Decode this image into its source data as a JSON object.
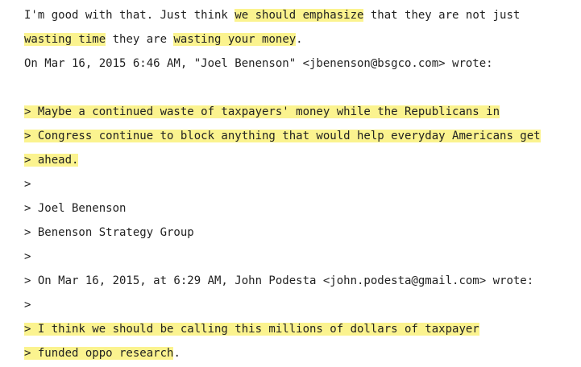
{
  "email": {
    "highlight_color": "#fbf38f",
    "text_color": "#222222",
    "lines": [
      {
        "type": "text",
        "segments": [
          {
            "text": "I'm good with that. Just think ",
            "highlight": false
          },
          {
            "text": "we should emphasize",
            "highlight": true
          },
          {
            "text": " that they are not just",
            "highlight": false
          }
        ]
      },
      {
        "type": "text",
        "segments": [
          {
            "text": "wasting time",
            "highlight": true
          },
          {
            "text": " they are ",
            "highlight": false
          },
          {
            "text": "wasting your money",
            "highlight": true
          },
          {
            "text": ".",
            "highlight": false
          }
        ]
      },
      {
        "type": "header",
        "segments": [
          {
            "text": "On Mar 16, 2015 6:46 AM, \"Joel Benenson\" <jbenenson@bsgco.com> wrote:",
            "highlight": false
          }
        ]
      },
      {
        "type": "blank",
        "segments": []
      },
      {
        "type": "quote",
        "segments": [
          {
            "text": "> Maybe a continued waste of taxpayers' money while the Republicans in",
            "highlight": true
          }
        ]
      },
      {
        "type": "quote",
        "segments": [
          {
            "text": "> Congress continue to block anything that would help everyday Americans get",
            "highlight": true
          }
        ]
      },
      {
        "type": "quote",
        "segments": [
          {
            "text": "> ahead.",
            "highlight": true
          }
        ]
      },
      {
        "type": "quote",
        "segments": [
          {
            "text": ">",
            "highlight": false
          }
        ]
      },
      {
        "type": "quote",
        "segments": [
          {
            "text": "> Joel Benenson",
            "highlight": false
          }
        ]
      },
      {
        "type": "quote",
        "segments": [
          {
            "text": "> Benenson Strategy Group",
            "highlight": false
          }
        ]
      },
      {
        "type": "quote",
        "segments": [
          {
            "text": ">",
            "highlight": false
          }
        ]
      },
      {
        "type": "quote",
        "segments": [
          {
            "text": "> On Mar 16, 2015, at 6:29 AM, John Podesta <john.podesta@gmail.com> wrote:",
            "highlight": false
          }
        ]
      },
      {
        "type": "quote",
        "segments": [
          {
            "text": ">",
            "highlight": false
          }
        ]
      },
      {
        "type": "quote",
        "segments": [
          {
            "text": "> I think we should be calling this millions of dollars of taxpayer",
            "highlight": true
          }
        ]
      },
      {
        "type": "quote",
        "segments": [
          {
            "text": "> funded oppo research",
            "highlight": true
          },
          {
            "text": ".",
            "highlight": false
          }
        ]
      }
    ]
  }
}
